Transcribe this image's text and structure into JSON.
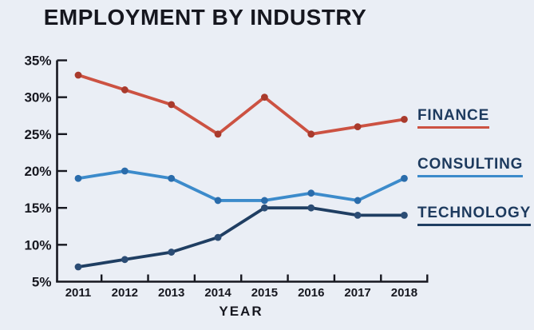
{
  "title": "EMPLOYMENT BY INDUSTRY",
  "chart_data": {
    "type": "line",
    "title": "EMPLOYMENT BY INDUSTRY",
    "xlabel": "YEAR",
    "ylabel": "",
    "unit": "%",
    "categories": [
      "2011",
      "2012",
      "2013",
      "2014",
      "2015",
      "2016",
      "2017",
      "2018"
    ],
    "ylim": [
      5,
      35
    ],
    "y_tick_step": 5,
    "y_tick_labels": [
      "35%",
      "30%",
      "25%",
      "20%",
      "15%",
      "10%",
      "5%"
    ],
    "grid": false,
    "legend_position": "right",
    "series": [
      {
        "name": "FINANCE",
        "color": "#cc5242",
        "dot_color": "#a93a2c",
        "values": [
          33,
          31,
          29,
          25,
          30,
          25,
          26,
          27
        ]
      },
      {
        "name": "CONSULTING",
        "color": "#3c8bcb",
        "dot_color": "#2a6cab",
        "values": [
          19,
          20,
          19,
          16,
          16,
          17,
          16,
          19
        ]
      },
      {
        "name": "TECHNOLOGY",
        "color": "#1f3e62",
        "dot_color": "#2b4c74",
        "values": [
          7,
          8,
          9,
          11,
          15,
          15,
          14,
          14
        ]
      }
    ]
  },
  "colors": {
    "background": "#eaeef5",
    "text": "#16171f",
    "legend_text": "#1d3a5e"
  }
}
